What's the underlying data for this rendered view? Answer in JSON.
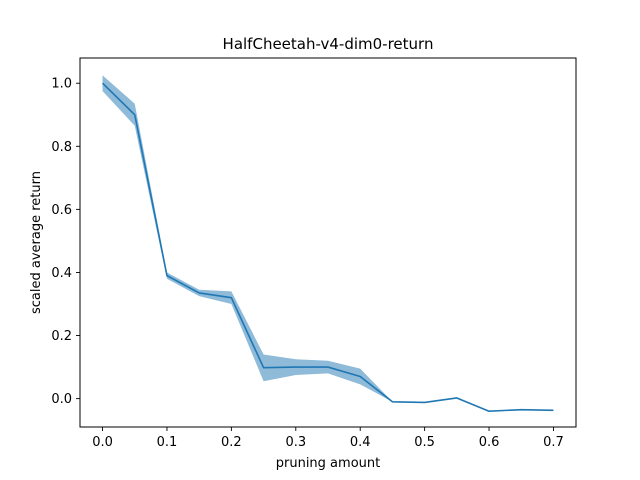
{
  "chart_data": {
    "type": "line",
    "title": "HalfCheetah-v4-dim0-return",
    "xlabel": "pruning amount",
    "ylabel": "scaled average return",
    "xlim": [
      -0.035,
      0.735
    ],
    "ylim": [
      -0.09,
      1.08
    ],
    "xticks": [
      0.0,
      0.1,
      0.2,
      0.3,
      0.4,
      0.5,
      0.6,
      0.7
    ],
    "xtick_labels": [
      "0.0",
      "0.1",
      "0.2",
      "0.3",
      "0.4",
      "0.5",
      "0.6",
      "0.7"
    ],
    "yticks": [
      0.0,
      0.2,
      0.4,
      0.6,
      0.8,
      1.0
    ],
    "ytick_labels": [
      "0.0",
      "0.2",
      "0.4",
      "0.6",
      "0.8",
      "1.0"
    ],
    "grid": false,
    "legend": "none",
    "series": [
      {
        "color": "#1f77b4",
        "band_color": "#1f77b4",
        "x": [
          0.0,
          0.05,
          0.1,
          0.15,
          0.2,
          0.25,
          0.3,
          0.35,
          0.4,
          0.45,
          0.5,
          0.55,
          0.6,
          0.65,
          0.7
        ],
        "y": [
          1.0,
          0.9,
          0.39,
          0.335,
          0.32,
          0.098,
          0.1,
          0.1,
          0.07,
          -0.01,
          -0.012,
          0.002,
          -0.04,
          -0.035,
          -0.037
        ],
        "lower": [
          0.975,
          0.865,
          0.38,
          0.325,
          0.3,
          0.055,
          0.075,
          0.08,
          0.045,
          -0.01,
          -0.012,
          0.002,
          -0.04,
          -0.035,
          -0.037
        ],
        "upper": [
          1.025,
          0.935,
          0.4,
          0.345,
          0.34,
          0.14,
          0.125,
          0.12,
          0.095,
          -0.01,
          -0.012,
          0.002,
          -0.04,
          -0.035,
          -0.037
        ]
      }
    ]
  }
}
